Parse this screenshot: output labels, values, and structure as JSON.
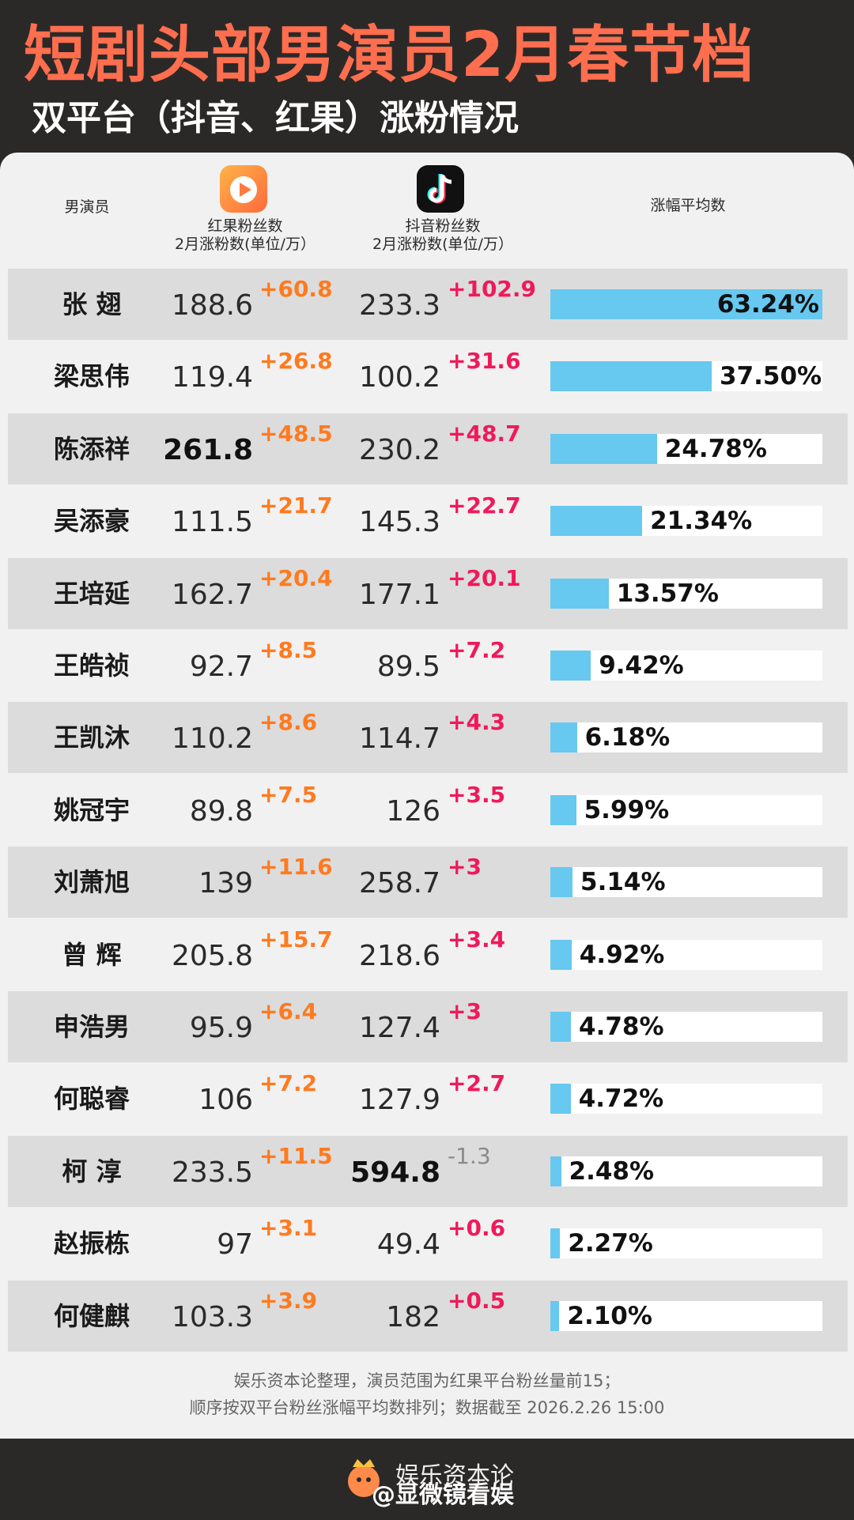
{
  "title": "短剧头部男演员2月春节档",
  "subtitle": "双平台（抖音、红果）涨粉情况",
  "header": {
    "actor": "男演员",
    "hongguo_line1": "红果粉丝数",
    "hongguo_line2": "2月涨粉数(单位/万）",
    "douyin_line1": "抖音粉丝数",
    "douyin_line2": "2月涨粉数(单位/万）",
    "avg": "涨幅平均数"
  },
  "chart_data": {
    "type": "table",
    "columns": [
      "男演员",
      "红果粉丝数",
      "红果2月涨粉数",
      "抖音粉丝数",
      "抖音2月涨粉数",
      "涨幅平均数"
    ],
    "rows": [
      {
        "name": "张 翅",
        "hg": "188.6",
        "hg_gain": "+60.8",
        "dy": "233.3",
        "dy_gain": "+102.9",
        "avg": "63.24%",
        "avg_value": 63.24
      },
      {
        "name": "梁思伟",
        "hg": "119.4",
        "hg_gain": "+26.8",
        "dy": "100.2",
        "dy_gain": "+31.6",
        "avg": "37.50%",
        "avg_value": 37.5
      },
      {
        "name": "陈添祥",
        "hg": "261.8",
        "hg_gain": "+48.5",
        "dy": "230.2",
        "dy_gain": "+48.7",
        "avg": "24.78%",
        "avg_value": 24.78
      },
      {
        "name": "吴添豪",
        "hg": "111.5",
        "hg_gain": "+21.7",
        "dy": "145.3",
        "dy_gain": "+22.7",
        "avg": "21.34%",
        "avg_value": 21.34
      },
      {
        "name": "王培延",
        "hg": "162.7",
        "hg_gain": "+20.4",
        "dy": "177.1",
        "dy_gain": "+20.1",
        "avg": "13.57%",
        "avg_value": 13.57
      },
      {
        "name": "王皓祯",
        "hg": "92.7",
        "hg_gain": "+8.5",
        "dy": "89.5",
        "dy_gain": "+7.2",
        "avg": "9.42%",
        "avg_value": 9.42
      },
      {
        "name": "王凯沐",
        "hg": "110.2",
        "hg_gain": "+8.6",
        "dy": "114.7",
        "dy_gain": "+4.3",
        "avg": "6.18%",
        "avg_value": 6.18
      },
      {
        "name": "姚冠宇",
        "hg": "89.8",
        "hg_gain": "+7.5",
        "dy": "126",
        "dy_gain": "+3.5",
        "avg": "5.99%",
        "avg_value": 5.99
      },
      {
        "name": "刘萧旭",
        "hg": "139",
        "hg_gain": "+11.6",
        "dy": "258.7",
        "dy_gain": "+3",
        "avg": "5.14%",
        "avg_value": 5.14
      },
      {
        "name": "曾 辉",
        "hg": "205.8",
        "hg_gain": "+15.7",
        "dy": "218.6",
        "dy_gain": "+3.4",
        "avg": "4.92%",
        "avg_value": 4.92
      },
      {
        "name": "申浩男",
        "hg": "95.9",
        "hg_gain": "+6.4",
        "dy": "127.4",
        "dy_gain": "+3",
        "avg": "4.78%",
        "avg_value": 4.78
      },
      {
        "name": "何聪睿",
        "hg": "106",
        "hg_gain": "+7.2",
        "dy": "127.9",
        "dy_gain": "+2.7",
        "avg": "4.72%",
        "avg_value": 4.72
      },
      {
        "name": "柯 淳",
        "hg": "233.5",
        "hg_gain": "+11.5",
        "dy": "594.8",
        "dy_gain": "-1.3",
        "avg": "2.48%",
        "avg_value": 2.48
      },
      {
        "name": "赵振栋",
        "hg": "97",
        "hg_gain": "+3.1",
        "dy": "49.4",
        "dy_gain": "+0.6",
        "avg": "2.27%",
        "avg_value": 2.27
      },
      {
        "name": "何健麒",
        "hg": "103.3",
        "hg_gain": "+3.9",
        "dy": "182",
        "dy_gain": "+0.5",
        "avg": "2.10%",
        "avg_value": 2.1
      }
    ],
    "bold_hg_row": 2,
    "bold_dy_row": 12,
    "bar_max": 63.24
  },
  "footnote_line1": "娱乐资本论整理，演员范围为红果平台粉丝量前15；",
  "footnote_line2": "顺序按双平台粉丝涨幅平均数排列；数据截至 2026.2.26 15:00",
  "brand": {
    "name": "娱乐资本论",
    "handle": "@显微镜看娱"
  },
  "colors": {
    "title": "#ff6e4e",
    "hongguo_gain": "#ff7a1f",
    "douyin_gain": "#f0195a",
    "bar": "#67c8f0"
  }
}
